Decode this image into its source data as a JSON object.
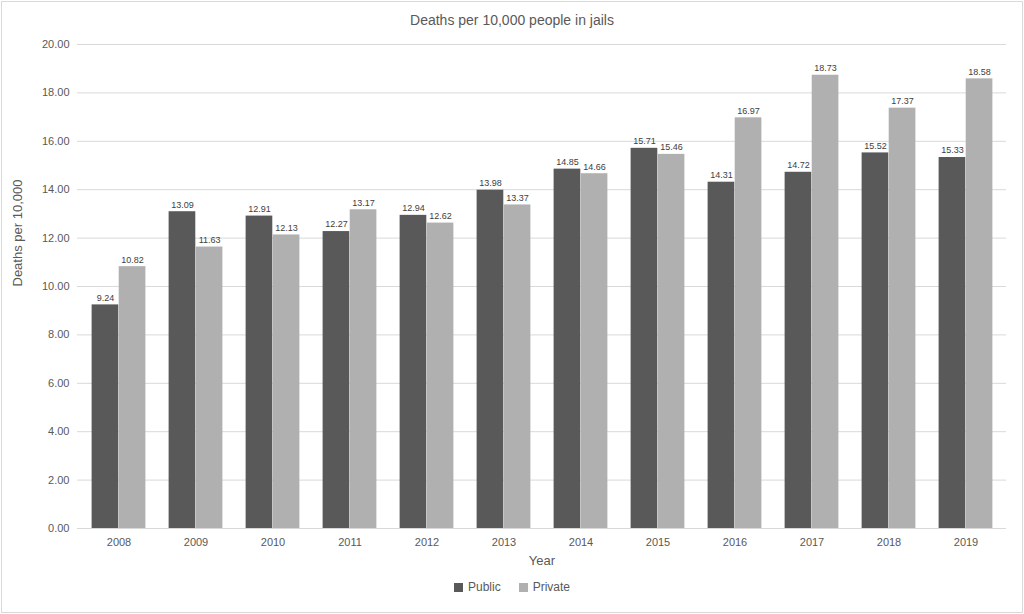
{
  "chart_data": {
    "type": "bar",
    "title": "Deaths per 10,000 people in jails",
    "x_label": "Year",
    "y_label": "Deaths per 10,000",
    "categories": [
      "2008",
      "2009",
      "2010",
      "2011",
      "2012",
      "2013",
      "2014",
      "2015",
      "2016",
      "2017",
      "2018",
      "2019"
    ],
    "series": [
      {
        "name": "Public",
        "color": "#595959",
        "values": [
          9.24,
          13.09,
          12.91,
          12.27,
          12.94,
          13.98,
          14.85,
          15.71,
          14.31,
          14.72,
          15.52,
          15.33
        ]
      },
      {
        "name": "Private",
        "color": "#b0b0b0",
        "values": [
          10.82,
          11.63,
          12.13,
          13.17,
          12.62,
          13.37,
          14.66,
          15.46,
          16.97,
          18.73,
          17.37,
          18.58
        ]
      }
    ],
    "ylim": [
      0,
      20
    ],
    "yticks": [
      {
        "value": 0,
        "label": "0.00"
      },
      {
        "value": 2,
        "label": "2.00"
      },
      {
        "value": 4,
        "label": "4.00"
      },
      {
        "value": 6,
        "label": "6.00"
      },
      {
        "value": 8,
        "label": "8.00"
      },
      {
        "value": 10,
        "label": "10.00"
      },
      {
        "value": 12,
        "label": "12.00"
      },
      {
        "value": 14,
        "label": "14.00"
      },
      {
        "value": 16,
        "label": "16.00"
      },
      {
        "value": 18,
        "label": "18.00"
      },
      {
        "value": 20,
        "label": "20.00"
      }
    ],
    "grid": true,
    "legend": "bottom",
    "data_labels": true
  }
}
